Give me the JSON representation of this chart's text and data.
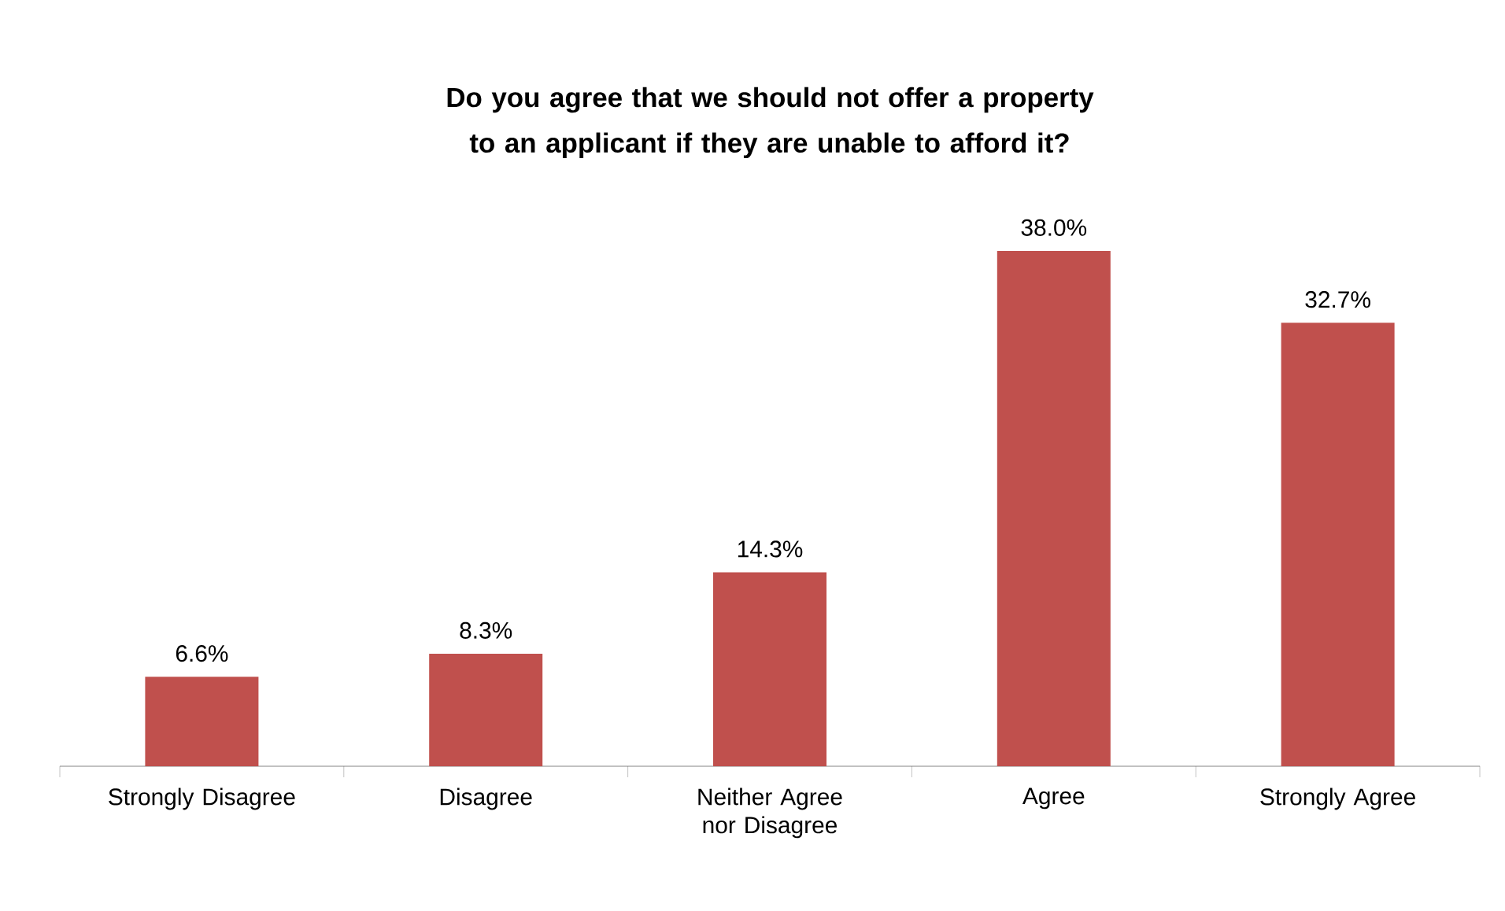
{
  "chart_data": {
    "type": "bar",
    "title": "Do you agree that we should not offer a property to an applicant if they are unable to afford it?",
    "categories": [
      "Strongly Disagree",
      "Disagree",
      "Neither Agree nor Disagree",
      "Agree",
      "Strongly Agree"
    ],
    "values": [
      6.6,
      8.3,
      14.3,
      38.0,
      32.7
    ],
    "value_labels": [
      "6.6%",
      "8.3%",
      "14.3%",
      "38.0%",
      "32.7%"
    ],
    "color": "#c0504d"
  }
}
